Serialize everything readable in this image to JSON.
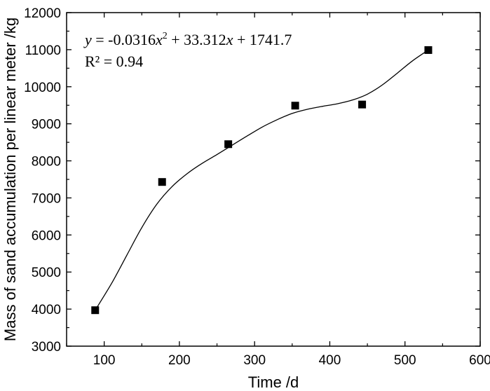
{
  "chart_data": {
    "type": "scatter",
    "title": "",
    "xlabel": "Time /d",
    "ylabel": "Mass of sand accumulation per linear meter /kg",
    "xlim": [
      50,
      600
    ],
    "ylim": [
      3000,
      12000
    ],
    "xticks": [
      100,
      200,
      300,
      400,
      500,
      600
    ],
    "yticks": [
      3000,
      4000,
      5000,
      6000,
      7000,
      8000,
      9000,
      10000,
      11000,
      12000
    ],
    "grid": false,
    "legend": "none",
    "series": [
      {
        "marker": "square",
        "x": [
          88,
          177,
          265,
          354,
          443,
          531
        ],
        "y": [
          3970,
          7430,
          8450,
          9490,
          9520,
          10990
        ]
      }
    ],
    "fit_curve": {
      "x": [
        88,
        110,
        130,
        150,
        170,
        190,
        210,
        230,
        250,
        270,
        290,
        310,
        330,
        350,
        370,
        390,
        410,
        430,
        450,
        470,
        490,
        510,
        531
      ],
      "y": [
        3970,
        4700,
        5450,
        6200,
        6830,
        7300,
        7650,
        7930,
        8170,
        8420,
        8670,
        8910,
        9110,
        9280,
        9390,
        9470,
        9540,
        9640,
        9800,
        10050,
        10370,
        10700,
        10990
      ]
    },
    "annotation": {
      "equation": {
        "y": "y",
        "mid1": " = -0.0316",
        "x1": "x",
        "sup": "2",
        "mid2": " + 33.312",
        "x2": "x",
        "end": " + 1741.7"
      },
      "r2": "R² = 0.94"
    },
    "colors": {
      "marker": "#000000",
      "line": "#000000",
      "axis": "#000000"
    }
  }
}
